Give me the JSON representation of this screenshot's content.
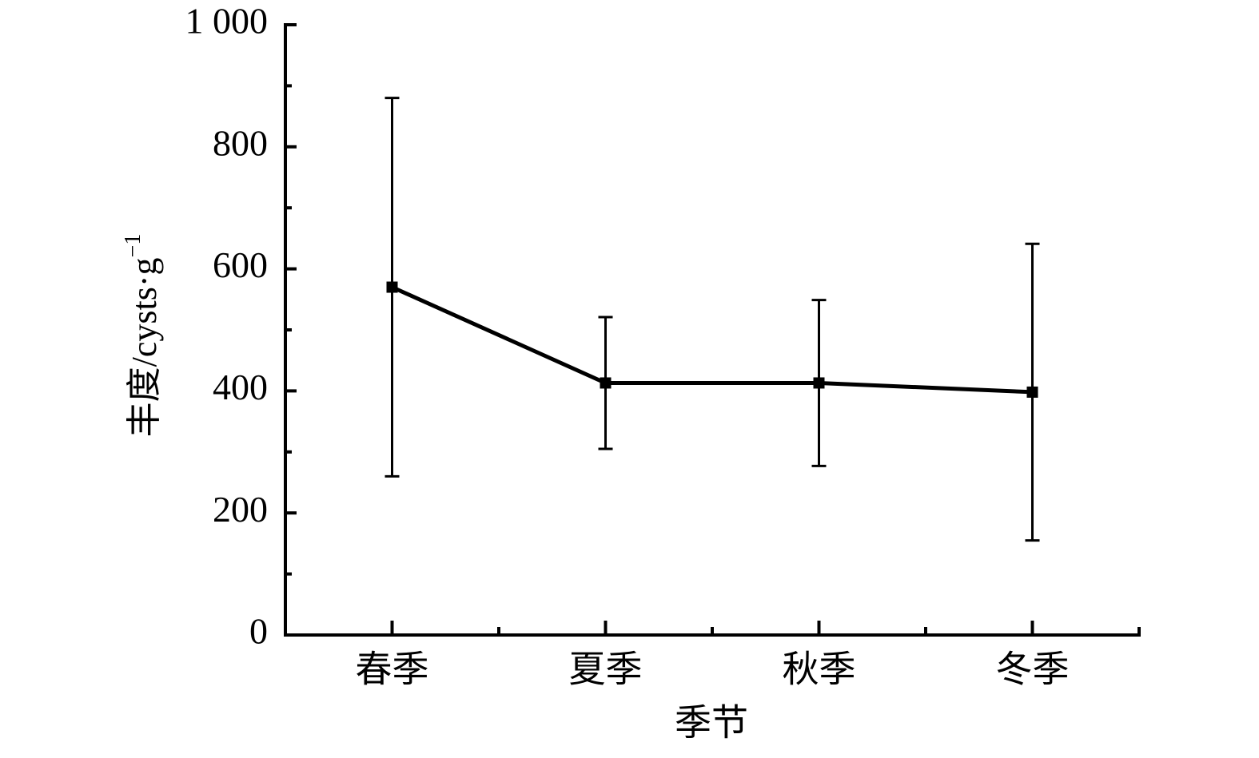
{
  "chart_data": {
    "type": "line",
    "categories": [
      "春季",
      "夏季",
      "秋季",
      "冬季"
    ],
    "series": [
      {
        "color": "#000000",
        "values": [
          570,
          413,
          413,
          398
        ],
        "errors": [
          310,
          108,
          136,
          243
        ]
      }
    ],
    "xlabel": "季节",
    "ylabel": "丰度/cysts·g",
    "ylabel_sup": "−1",
    "ylim": [
      0,
      1000
    ],
    "yticks": [
      0,
      200,
      400,
      600,
      800,
      {
        "value": 1000,
        "label": "1 000"
      }
    ],
    "yminorticks": [
      100,
      300,
      500,
      700,
      900
    ],
    "grid": false
  }
}
